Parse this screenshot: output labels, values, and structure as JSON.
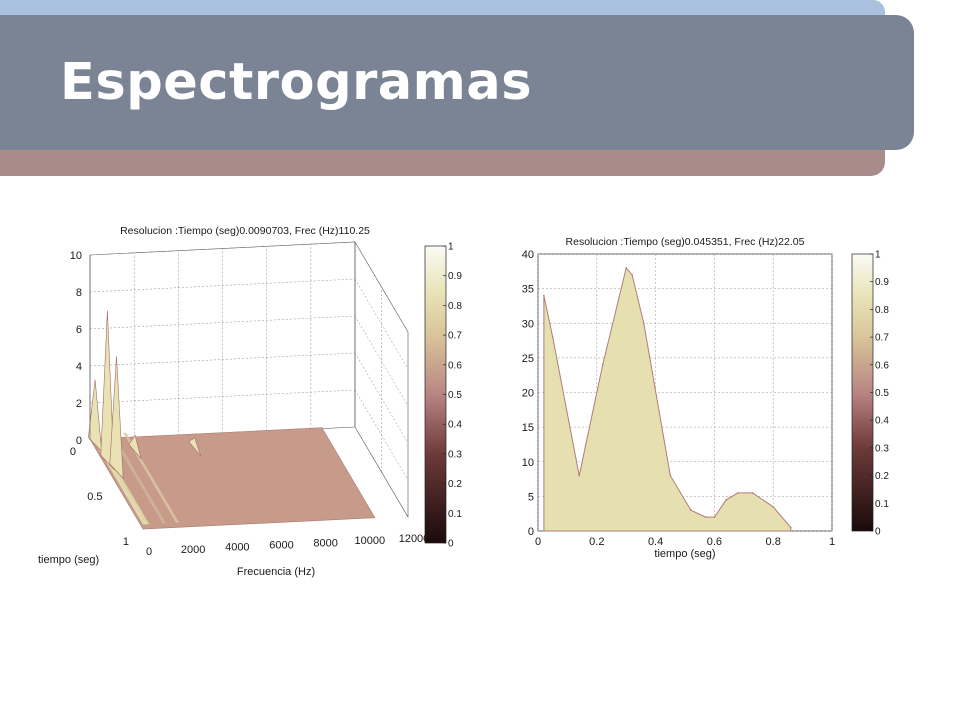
{
  "slide": {
    "title": "Espectrogramas"
  },
  "colorbar_ticks": [
    "0",
    "0.1",
    "0.2",
    "0.3",
    "0.4",
    "0.5",
    "0.6",
    "0.7",
    "0.8",
    "0.9",
    "1"
  ],
  "colors": {
    "surface": "#c79a8a",
    "peak": "#e9e3b4",
    "edge": "#b07c7a",
    "fill": "#e6e0b0"
  },
  "chart_data": [
    {
      "type": "surface",
      "title": "Resolucion :Tiempo (seg)0.0090703, Frec (Hz)110.25",
      "xlabel": "Frecuencia (Hz)",
      "ylabel": "tiempo (seg)",
      "x_ticks": [
        "0",
        "2000",
        "4000",
        "6000",
        "8000",
        "10000",
        "12000"
      ],
      "y_ticks": [
        "0",
        "0.5",
        "1"
      ],
      "z_ticks": [
        "0",
        "2",
        "4",
        "6",
        "8",
        "10"
      ],
      "xlim": [
        0,
        12000
      ],
      "ylim": [
        0,
        1
      ],
      "zlim": [
        0,
        10
      ],
      "grid": true,
      "colorbar": {
        "range": [
          0,
          1
        ]
      },
      "peaks": [
        {
          "freq": 0,
          "time": 0.05,
          "z": 3.5
        },
        {
          "freq": 80,
          "time": 0.25,
          "z": 8.2
        },
        {
          "freq": 250,
          "time": 0.35,
          "z": 6.2
        },
        {
          "freq": 1600,
          "time": 0.15,
          "z": 0.9
        },
        {
          "freq": 4300,
          "time": 0.15,
          "z": 0.6
        }
      ]
    },
    {
      "type": "area",
      "title": "Resolucion :Tiempo (seg)0.045351, Frec (Hz)22.05",
      "xlabel": "tiempo (seg)",
      "ylabel": "",
      "x_ticks": [
        "0",
        "0.2",
        "0.4",
        "0.6",
        "0.8",
        "1"
      ],
      "y_ticks": [
        "0",
        "5",
        "10",
        "15",
        "20",
        "25",
        "30",
        "35",
        "40"
      ],
      "xlim": [
        0,
        1
      ],
      "ylim": [
        0,
        40
      ],
      "grid": true,
      "colorbar": {
        "range": [
          0,
          1
        ]
      },
      "x": [
        0.02,
        0.05,
        0.14,
        0.22,
        0.3,
        0.32,
        0.36,
        0.45,
        0.52,
        0.57,
        0.6,
        0.64,
        0.68,
        0.73,
        0.8,
        0.86
      ],
      "y": [
        34,
        28,
        8,
        24,
        38,
        37,
        30,
        8,
        3,
        2,
        2,
        4.5,
        5.5,
        5.5,
        3.5,
        0.5
      ]
    }
  ]
}
